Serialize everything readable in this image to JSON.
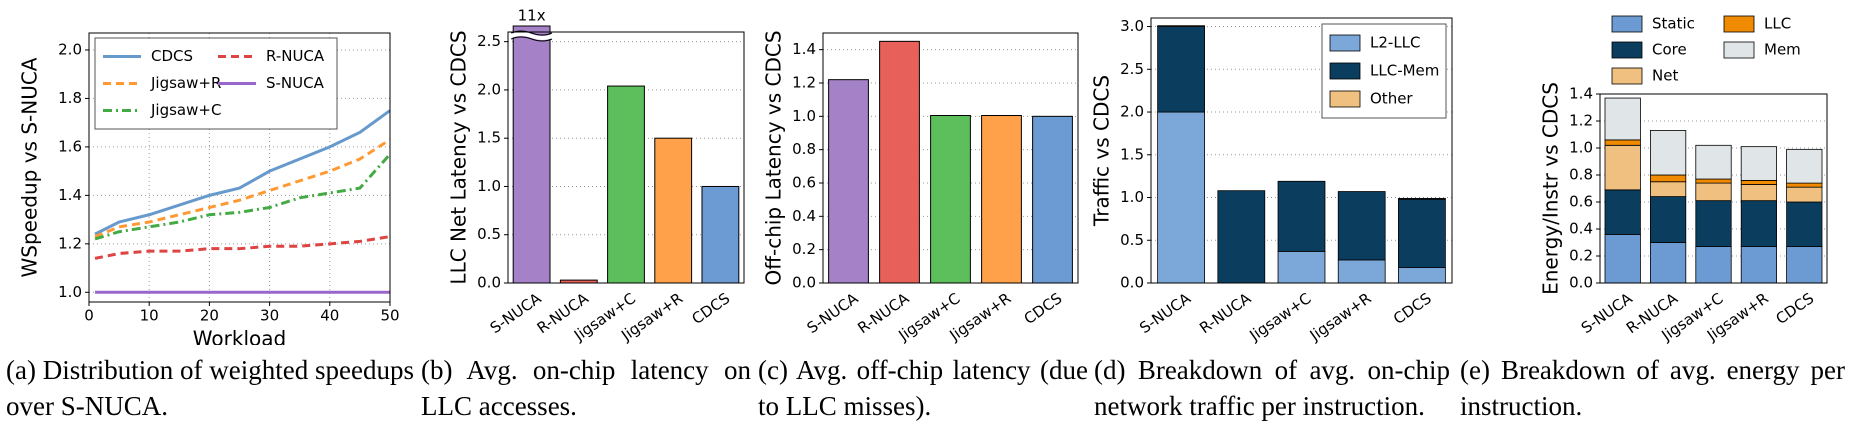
{
  "chart_data": [
    {
      "type": "line",
      "caption": "(a) Distribution of weighted speedups over S-NUCA.",
      "xlabel": "Workload",
      "ylabel": "WSpeedup vs S-NUCA",
      "x": [
        1,
        5,
        10,
        15,
        20,
        25,
        30,
        35,
        40,
        45,
        50
      ],
      "series": [
        {
          "name": "CDCS",
          "color": "#6699cc",
          "dash": "solid",
          "values": [
            1.24,
            1.29,
            1.32,
            1.36,
            1.4,
            1.43,
            1.5,
            1.55,
            1.6,
            1.66,
            1.75
          ]
        },
        {
          "name": "Jigsaw+R",
          "color": "#ff9933",
          "dash": "dashed",
          "values": [
            1.23,
            1.27,
            1.29,
            1.32,
            1.35,
            1.38,
            1.42,
            1.46,
            1.5,
            1.55,
            1.63
          ]
        },
        {
          "name": "Jigsaw+C",
          "color": "#44aa44",
          "dash": "dashdot",
          "values": [
            1.22,
            1.25,
            1.27,
            1.29,
            1.32,
            1.33,
            1.35,
            1.39,
            1.41,
            1.43,
            1.57
          ]
        },
        {
          "name": "R-NUCA",
          "color": "#dd4444",
          "dash": "dashed",
          "values": [
            1.14,
            1.16,
            1.17,
            1.17,
            1.18,
            1.18,
            1.19,
            1.19,
            1.2,
            1.21,
            1.23
          ]
        },
        {
          "name": "S-NUCA",
          "color": "#9966cc",
          "dash": "solid",
          "values": [
            1.0,
            1.0,
            1.0,
            1.0,
            1.0,
            1.0,
            1.0,
            1.0,
            1.0,
            1.0,
            1.0
          ]
        }
      ],
      "xlim": [
        0,
        50
      ],
      "xticks": [
        0,
        10,
        20,
        30,
        40,
        50
      ],
      "ylim": [
        0.96,
        2.07
      ],
      "yticks": [
        {
          "value": 1.0,
          "label": "1.0"
        },
        1.2,
        1.4,
        1.6,
        1.8,
        {
          "value": 2.0,
          "label": "2.0"
        }
      ],
      "grid": true,
      "legend": "upper left",
      "legend_columns": 2
    },
    {
      "type": "bar",
      "caption": "(b) Avg. on-chip latency on LLC accesses.",
      "ylabel": "LLC Net Latency vs CDCS",
      "categories": [
        "S-NUCA",
        "R-NUCA",
        "Jigsaw+C",
        "Jigsaw+R",
        "CDCS"
      ],
      "values": [
        11,
        0.03,
        2.04,
        1.5,
        1.0
      ],
      "value_labels": [
        "11x",
        null,
        null,
        null,
        null
      ],
      "colors": [
        "#a582c8",
        "#e8605a",
        "#5cbf5c",
        "#ffa04a",
        "#6b9bd2"
      ],
      "ylim": [
        0,
        2.6
      ],
      "yticks": [
        {
          "value": 0,
          "label": "0.0"
        },
        0.5,
        {
          "value": 1,
          "label": "1.0"
        },
        1.5,
        {
          "value": 2,
          "label": "2.0"
        },
        2.5
      ],
      "grid": true
    },
    {
      "type": "bar",
      "caption": "(c) Avg. off-chip latency (due to LLC misses).",
      "ylabel": "Off-chip Latency vs CDCS",
      "categories": [
        "S-NUCA",
        "R-NUCA",
        "Jigsaw+C",
        "Jigsaw+R",
        "CDCS"
      ],
      "values": [
        1.22,
        1.45,
        1.005,
        1.005,
        1.0
      ],
      "colors": [
        "#a582c8",
        "#e8605a",
        "#5cbf5c",
        "#ffa04a",
        "#6b9bd2"
      ],
      "ylim": [
        0,
        1.5
      ],
      "yticks": [
        {
          "value": 0,
          "label": "0.0"
        },
        0.2,
        0.4,
        0.6,
        0.8,
        {
          "value": 1,
          "label": "1.0"
        },
        1.2,
        1.4
      ],
      "grid": true
    },
    {
      "type": "bar",
      "stacked": true,
      "caption": "(d) Breakdown of avg. on-chip network traffic per instruction.",
      "ylabel": "Traffic vs CDCS",
      "categories": [
        "S-NUCA",
        "R-NUCA",
        "Jigsaw+C",
        "Jigsaw+R",
        "CDCS"
      ],
      "series": [
        {
          "name": "L2-LLC",
          "color": "#7ba7d9",
          "values": [
            2.0,
            0,
            0.37,
            0.27,
            0.18
          ]
        },
        {
          "name": "LLC-Mem",
          "color": "#0b3d5e",
          "values": [
            1.0,
            1.08,
            0.82,
            0.8,
            0.8
          ]
        },
        {
          "name": "Other",
          "color": "#f0c080",
          "values": [
            0.01,
            0,
            0,
            0,
            0.01
          ]
        }
      ],
      "ylim": [
        0,
        3.1
      ],
      "yticks": [
        {
          "value": 0,
          "label": "0.0"
        },
        0.5,
        {
          "value": 1,
          "label": "1.0"
        },
        1.5,
        {
          "value": 2,
          "label": "2.0"
        },
        2.5,
        {
          "value": 3,
          "label": "3.0"
        }
      ],
      "grid": true,
      "legend": "upper right",
      "legend_columns": 1
    },
    {
      "type": "bar",
      "stacked": true,
      "caption": "(e) Breakdown of avg. energy per instruction.",
      "ylabel": "Energy/Instr vs CDCS",
      "categories": [
        "S-NUCA",
        "R-NUCA",
        "Jigsaw+C",
        "Jigsaw+R",
        "CDCS"
      ],
      "series": [
        {
          "name": "Static",
          "color": "#6b9bd2",
          "values": [
            0.36,
            0.3,
            0.27,
            0.27,
            0.27
          ]
        },
        {
          "name": "Core",
          "color": "#0b3d5e",
          "values": [
            0.33,
            0.34,
            0.34,
            0.34,
            0.33
          ]
        },
        {
          "name": "Net",
          "color": "#f0c080",
          "values": [
            0.33,
            0.11,
            0.13,
            0.12,
            0.11
          ]
        },
        {
          "name": "LLC",
          "color": "#f08a00",
          "values": [
            0.04,
            0.05,
            0.03,
            0.03,
            0.03
          ]
        },
        {
          "name": "Mem",
          "color": "#e0e6e8",
          "values": [
            0.31,
            0.33,
            0.25,
            0.25,
            0.25
          ]
        }
      ],
      "ylim": [
        0,
        1.4
      ],
      "yticks": [
        {
          "value": 0,
          "label": "0.0"
        },
        0.2,
        0.4,
        0.6,
        0.8,
        {
          "value": 1,
          "label": "1.0"
        },
        1.2,
        1.4
      ],
      "grid": true,
      "legend": "top",
      "legend_columns": 2
    }
  ]
}
